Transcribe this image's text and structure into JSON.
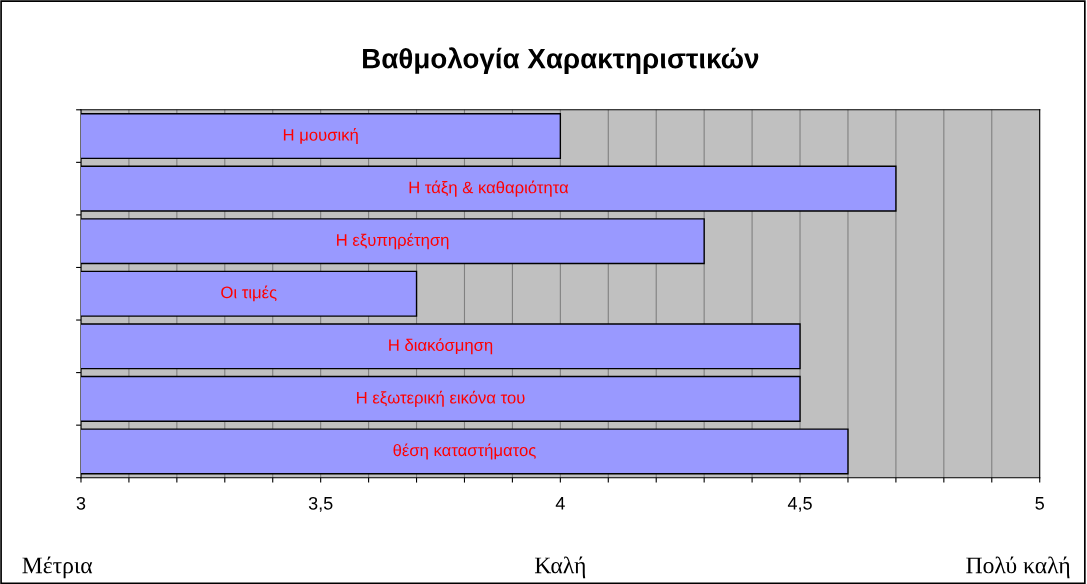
{
  "chart_data": {
    "type": "bar",
    "orientation": "horizontal",
    "title": "Βαθμολογία Χαρακτηριστικών",
    "categories": [
      "Η μουσική",
      "Η τάξη & καθαριότητα",
      "Η εξυπηρέτηση",
      "Οι τιμές",
      "Η διακόσμηση",
      "Η εξωτερική εικόνα του",
      "θέση καταστήματος"
    ],
    "values": [
      4.0,
      4.7,
      4.3,
      3.7,
      4.5,
      4.5,
      4.6
    ],
    "color": "#9999ff",
    "xlim": [
      3,
      5
    ],
    "xticks": [
      3,
      {
        "value": 3.1,
        "label": null
      },
      {
        "value": 3.2,
        "label": null
      },
      {
        "value": 3.3,
        "label": null
      },
      {
        "value": 3.4,
        "label": null
      },
      {
        "value": 3.5,
        "label": "3,5"
      },
      {
        "value": 3.6,
        "label": null
      },
      {
        "value": 3.7,
        "label": null
      },
      {
        "value": 3.8,
        "label": null
      },
      {
        "value": 3.9,
        "label": null
      },
      4,
      {
        "value": 4.1,
        "label": null
      },
      {
        "value": 4.2,
        "label": null
      },
      {
        "value": 4.3,
        "label": null
      },
      {
        "value": 4.4,
        "label": null
      },
      {
        "value": 4.5,
        "label": "4,5"
      },
      {
        "value": 4.6,
        "label": null
      },
      {
        "value": 4.7,
        "label": null
      },
      {
        "value": 4.8,
        "label": null
      },
      {
        "value": 4.9,
        "label": null
      },
      5
    ],
    "grid": "x",
    "tick_labels": "x",
    "annotations": [
      "Μέτρια",
      "Καλή",
      "Πολύ καλή"
    ]
  }
}
